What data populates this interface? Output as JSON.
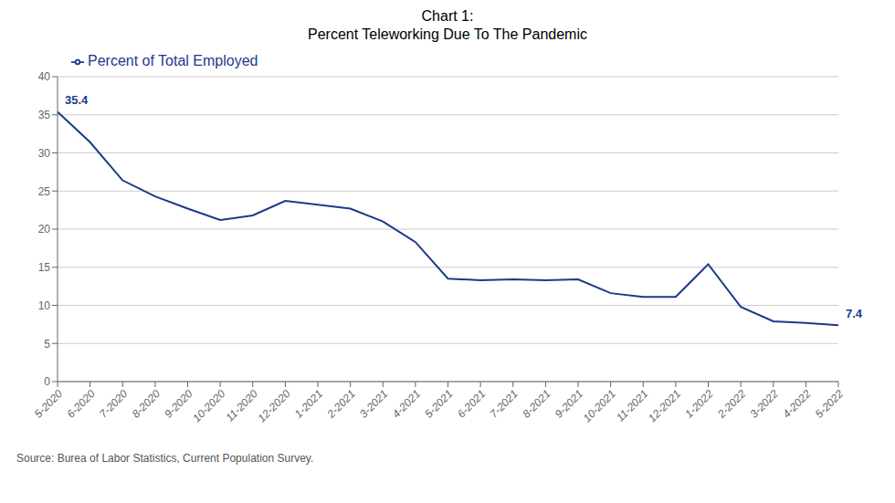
{
  "chart_data": {
    "type": "line",
    "title": "Chart 1:",
    "subtitle": "Percent Teleworking Due To The Pandemic",
    "categories": [
      "5-2020",
      "6-2020",
      "7-2020",
      "8-2020",
      "9-2020",
      "10-2020",
      "11-2020",
      "12-2020",
      "1-2021",
      "2-2021",
      "3-2021",
      "4-2021",
      "5-2021",
      "6-2021",
      "7-2021",
      "8-2021",
      "9-2021",
      "10-2021",
      "11-2021",
      "12-2021",
      "1-2022",
      "2-2022",
      "3-2022",
      "4-2022",
      "5-2022"
    ],
    "series": [
      {
        "name": "Percent of Total Employed",
        "color": "#1b3a8c",
        "values": [
          35.4,
          31.4,
          26.4,
          24.3,
          22.7,
          21.2,
          21.8,
          23.7,
          23.2,
          22.7,
          21.0,
          18.3,
          13.5,
          13.3,
          13.4,
          13.3,
          13.4,
          11.6,
          11.1,
          11.1,
          15.4,
          9.8,
          7.9,
          7.7,
          7.4
        ]
      }
    ],
    "annotations": [
      {
        "text": "35.4",
        "x": "5-2020",
        "y": 35.4
      },
      {
        "text": "7.4",
        "x": "5-2022",
        "y": 7.4
      },
      {
        "text": "Source: Burea of Labor Statistics, Current Population Survey."
      }
    ],
    "ylim": [
      0,
      40
    ],
    "yticks": [
      0,
      5,
      10,
      15,
      20,
      25,
      30,
      35,
      40
    ],
    "grid": true,
    "legend": "upper left"
  }
}
